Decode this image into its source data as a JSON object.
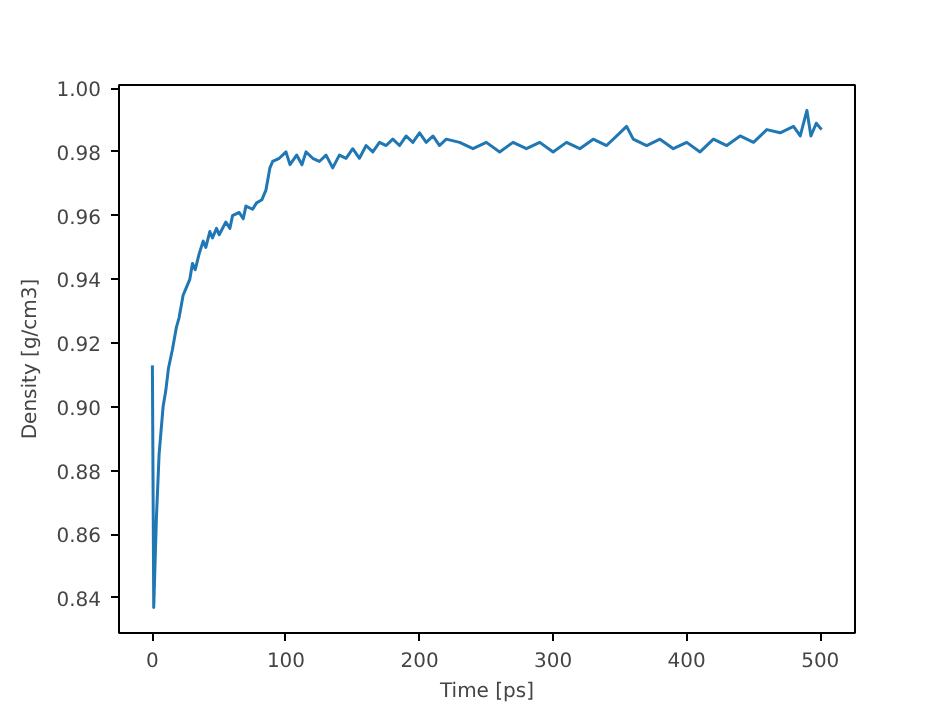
{
  "chart_data": {
    "type": "line",
    "xlabel": "Time [ps]",
    "ylabel": "Density [g/cm3]",
    "x": [
      0,
      1,
      3,
      5,
      8,
      10,
      12,
      15,
      18,
      20,
      23,
      25,
      28,
      30,
      32,
      35,
      38,
      40,
      43,
      45,
      48,
      50,
      55,
      58,
      60,
      65,
      68,
      70,
      75,
      78,
      82,
      85,
      88,
      90,
      95,
      100,
      103,
      108,
      112,
      115,
      120,
      125,
      130,
      135,
      140,
      145,
      150,
      155,
      160,
      165,
      170,
      175,
      180,
      185,
      190,
      195,
      200,
      205,
      210,
      215,
      220,
      230,
      240,
      250,
      260,
      270,
      280,
      290,
      300,
      310,
      320,
      330,
      340,
      350,
      355,
      360,
      370,
      380,
      390,
      400,
      410,
      420,
      430,
      440,
      450,
      460,
      470,
      480,
      485,
      490,
      493,
      497,
      501
    ],
    "series": [
      {
        "color": "#1f77b4",
        "values": [
          0.913,
          0.837,
          0.865,
          0.885,
          0.9,
          0.905,
          0.912,
          0.918,
          0.925,
          0.928,
          0.935,
          0.937,
          0.94,
          0.945,
          0.943,
          0.948,
          0.952,
          0.95,
          0.955,
          0.953,
          0.956,
          0.954,
          0.958,
          0.956,
          0.96,
          0.961,
          0.959,
          0.963,
          0.962,
          0.964,
          0.965,
          0.968,
          0.975,
          0.977,
          0.978,
          0.98,
          0.976,
          0.979,
          0.976,
          0.98,
          0.978,
          0.977,
          0.979,
          0.975,
          0.979,
          0.978,
          0.981,
          0.978,
          0.982,
          0.98,
          0.983,
          0.982,
          0.984,
          0.982,
          0.985,
          0.983,
          0.986,
          0.983,
          0.985,
          0.982,
          0.984,
          0.983,
          0.981,
          0.983,
          0.98,
          0.983,
          0.981,
          0.983,
          0.98,
          0.983,
          0.981,
          0.984,
          0.982,
          0.986,
          0.988,
          0.984,
          0.982,
          0.984,
          0.981,
          0.983,
          0.98,
          0.984,
          0.982,
          0.985,
          0.983,
          0.987,
          0.986,
          0.988,
          0.985,
          0.993,
          0.985,
          0.989,
          0.987
        ]
      }
    ],
    "xlim": [
      -25,
      526
    ],
    "ylim": [
      0.829,
      1.001
    ],
    "xticks": [
      0,
      100,
      200,
      300,
      400,
      500
    ],
    "yticks": [
      {
        "value": 0.84,
        "label": "0.84"
      },
      {
        "value": 0.86,
        "label": "0.86"
      },
      {
        "value": 0.88,
        "label": "0.88"
      },
      {
        "value": 0.9,
        "label": "0.90"
      },
      {
        "value": 0.92,
        "label": "0.92"
      },
      {
        "value": 0.94,
        "label": "0.94"
      },
      {
        "value": 0.96,
        "label": "0.96"
      },
      {
        "value": 0.98,
        "label": "0.98"
      },
      {
        "value": 1.0,
        "label": "1.00"
      }
    ],
    "grid": false,
    "marker": "none",
    "line_style": "solid"
  }
}
